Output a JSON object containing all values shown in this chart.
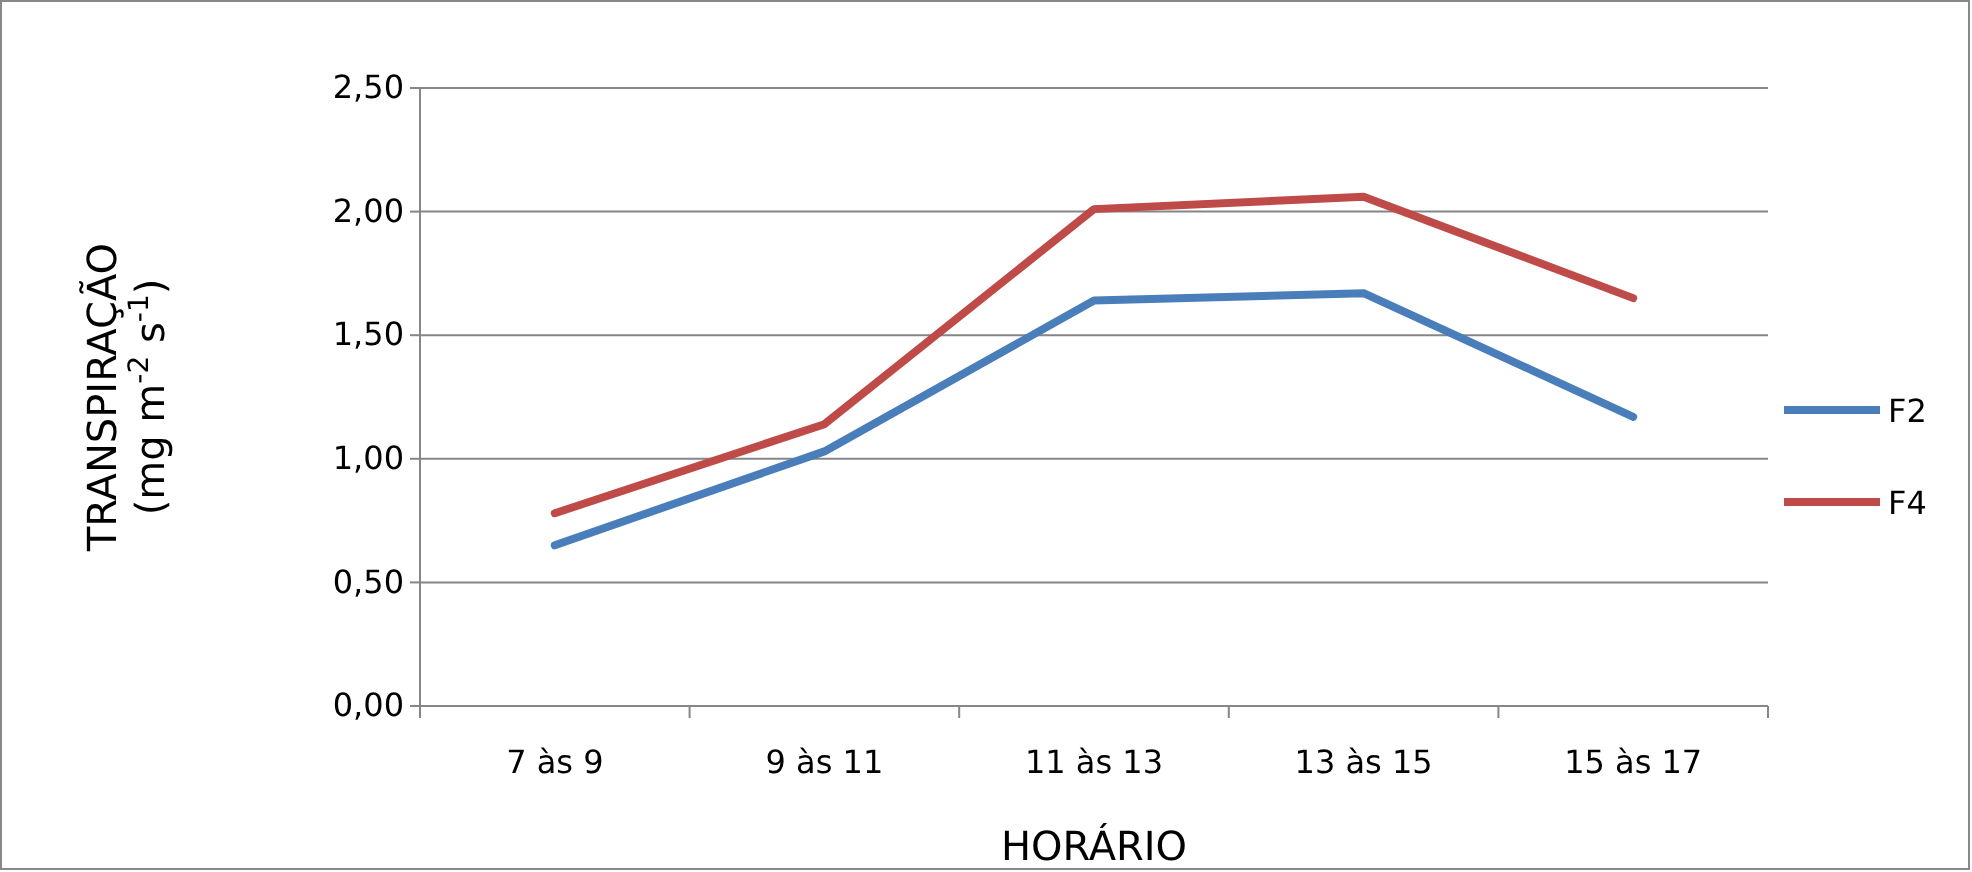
{
  "chart_data": {
    "type": "line",
    "xlabel": "HORÁRIO",
    "ylabel": "TRANSPIRAÇÃO\n(mg m$^{-2}$ s$^{-1}$)",
    "categories": [
      "7 às 9",
      "9 às 11",
      "11 às 13",
      "13 às 15",
      "15 às 17"
    ],
    "series": [
      {
        "name": "F2",
        "color": "#4a7ebb",
        "values": [
          0.65,
          1.03,
          1.64,
          1.67,
          1.17
        ]
      },
      {
        "name": "F4",
        "color": "#be4b48",
        "values": [
          0.78,
          1.14,
          2.01,
          2.06,
          1.65
        ]
      }
    ],
    "ylim": [
      0,
      2.5
    ],
    "yticks": [
      {
        "value": 0,
        "label": "0,00"
      },
      {
        "value": 0.5,
        "label": "0,50"
      },
      {
        "value": 1,
        "label": "1,00"
      },
      {
        "value": 1.5,
        "label": "1,50"
      },
      {
        "value": 2,
        "label": "2,00"
      },
      {
        "value": 2.5,
        "label": "2,50"
      }
    ],
    "grid": "y",
    "legend": "right",
    "marker": "none",
    "line_style": "solid"
  }
}
